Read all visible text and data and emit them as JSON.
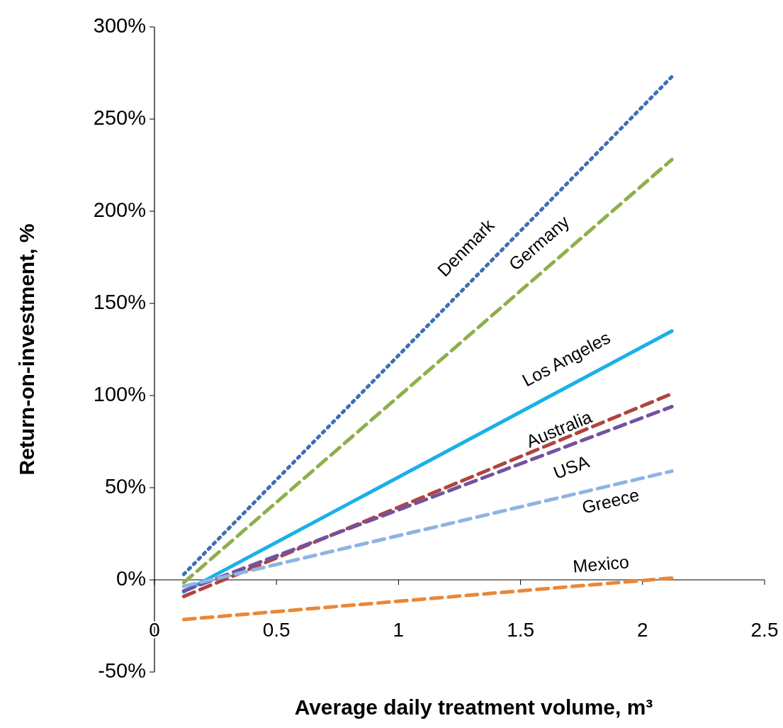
{
  "chart_data": {
    "type": "line",
    "xlabel": "Average daily treatment volume, m³",
    "ylabel": "Return-on-investment, %",
    "xlim": [
      0,
      2.5
    ],
    "xticks": [
      0,
      0.5,
      1,
      1.5,
      2,
      2.5
    ],
    "ylim": [
      -50,
      300
    ],
    "yticks": [
      {
        "value": -50,
        "label": "-50%"
      },
      {
        "value": 0,
        "label": "0%"
      },
      {
        "value": 50,
        "label": "50%"
      },
      {
        "value": 100,
        "label": "100%"
      },
      {
        "value": 150,
        "label": "150%"
      },
      {
        "value": 200,
        "label": "200%"
      },
      {
        "value": 250,
        "label": "250%"
      },
      {
        "value": 300,
        "label": "300%"
      }
    ],
    "grid": false,
    "marker": "none",
    "x": [
      0.12,
      2.12
    ],
    "series": [
      {
        "name": "Denmark",
        "color": "#3f6fb5",
        "line_style": "dotted",
        "values": [
          3,
          273
        ]
      },
      {
        "name": "Germany",
        "color": "#8db04a",
        "line_style": "dashed",
        "values": [
          -1.5,
          228
        ]
      },
      {
        "name": "Los Angeles",
        "color": "#1ab0e8",
        "line_style": "solid",
        "values": [
          -6.5,
          135
        ]
      },
      {
        "name": "Australia",
        "color": "#b0443f",
        "line_style": "dashed",
        "values": [
          -9,
          101
        ]
      },
      {
        "name": "USA",
        "color": "#7252a0",
        "line_style": "dashed",
        "values": [
          -6,
          94
        ]
      },
      {
        "name": "Greece",
        "color": "#8db4e2",
        "line_style": "dashed",
        "values": [
          -3.5,
          59
        ]
      },
      {
        "name": "Mexico",
        "color": "#e8883a",
        "line_style": "dashed",
        "values": [
          -21.5,
          1
        ]
      }
    ]
  }
}
